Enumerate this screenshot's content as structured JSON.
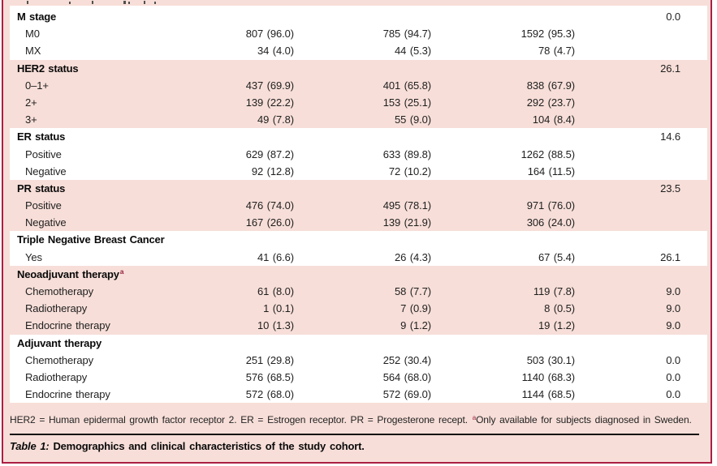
{
  "colors": {
    "frame_border": "#ab1f44",
    "band_pink": "#f7ded8",
    "band_white": "#ffffff",
    "footnote_marker": "#96203d",
    "caption_rule": "#141414",
    "text": "#1f1f1f"
  },
  "table": {
    "sections": [
      {
        "header": "M stage",
        "header_value": "0.0",
        "tone": "white",
        "rows": [
          {
            "label": "M0",
            "values": [
              "807 (96.0)",
              "785 (94.7)",
              "1592 (95.3)",
              ""
            ]
          },
          {
            "label": "MX",
            "values": [
              "34 (4.0)",
              "44 (5.3)",
              "78 (4.7)",
              ""
            ]
          }
        ]
      },
      {
        "header": "HER2 status",
        "header_value": "26.1",
        "tone": "pink",
        "rows": [
          {
            "label": "0–1+",
            "values": [
              "437 (69.9)",
              "401 (65.8)",
              "838 (67.9)",
              ""
            ]
          },
          {
            "label": "2+",
            "values": [
              "139 (22.2)",
              "153 (25.1)",
              "292 (23.7)",
              ""
            ]
          },
          {
            "label": "3+",
            "values": [
              "49 (7.8)",
              "55 (9.0)",
              "104 (8.4)",
              ""
            ]
          }
        ]
      },
      {
        "header": "ER status",
        "header_value": "14.6",
        "tone": "white",
        "rows": [
          {
            "label": "Positive",
            "values": [
              "629 (87.2)",
              "633 (89.8)",
              "1262 (88.5)",
              ""
            ]
          },
          {
            "label": "Negative",
            "values": [
              "92 (12.8)",
              "72 (10.2)",
              "164 (11.5)",
              ""
            ]
          }
        ]
      },
      {
        "header": "PR status",
        "header_value": "23.5",
        "tone": "pink",
        "rows": [
          {
            "label": "Positive",
            "values": [
              "476 (74.0)",
              "495 (78.1)",
              "971 (76.0)",
              ""
            ]
          },
          {
            "label": "Negative",
            "values": [
              "167 (26.0)",
              "139 (21.9)",
              "306 (24.0)",
              ""
            ]
          }
        ]
      },
      {
        "header": "Triple Negative Breast Cancer",
        "header_value": "",
        "tone": "white",
        "rows": [
          {
            "label": "Yes",
            "values": [
              "41 (6.6)",
              "26 (4.3)",
              "67 (5.4)",
              "26.1"
            ]
          }
        ]
      },
      {
        "header": "Neoadjuvant therapy",
        "sup": "a",
        "header_value": "",
        "tone": "pink",
        "rows": [
          {
            "label": "Chemotherapy",
            "values": [
              "61 (8.0)",
              "58 (7.7)",
              "119 (7.8)",
              "9.0"
            ]
          },
          {
            "label": "Radiotherapy",
            "values": [
              "1 (0.1)",
              "7 (0.9)",
              "8 (0.5)",
              "9.0"
            ]
          },
          {
            "label": "Endocrine therapy",
            "values": [
              "10 (1.3)",
              "9 (1.2)",
              "19 (1.2)",
              "9.0"
            ]
          }
        ]
      },
      {
        "header": "Adjuvant therapy",
        "header_value": "",
        "tone": "white",
        "rows": [
          {
            "label": "Chemotherapy",
            "values": [
              "251 (29.8)",
              "252 (30.4)",
              "503 (30.1)",
              "0.0"
            ]
          },
          {
            "label": "Radiotherapy",
            "values": [
              "576 (68.5)",
              "564 (68.0)",
              "1140 (68.3)",
              "0.0"
            ]
          },
          {
            "label": "Endocrine therapy",
            "values": [
              "572 (68.0)",
              "572 (69.0)",
              "1144 (68.5)",
              "0.0"
            ]
          }
        ]
      }
    ]
  },
  "footnote": {
    "text_before_sup": "HER2 = Human epidermal growth factor receptor 2. ER = Estrogen receptor. PR = Progesterone recept. ",
    "sup": "a",
    "text_after_sup": "Only available for subjects diagnosed in Sweden."
  },
  "caption": {
    "label": "Table 1:",
    "text": " Demographics and clinical characteristics of the study cohort."
  }
}
